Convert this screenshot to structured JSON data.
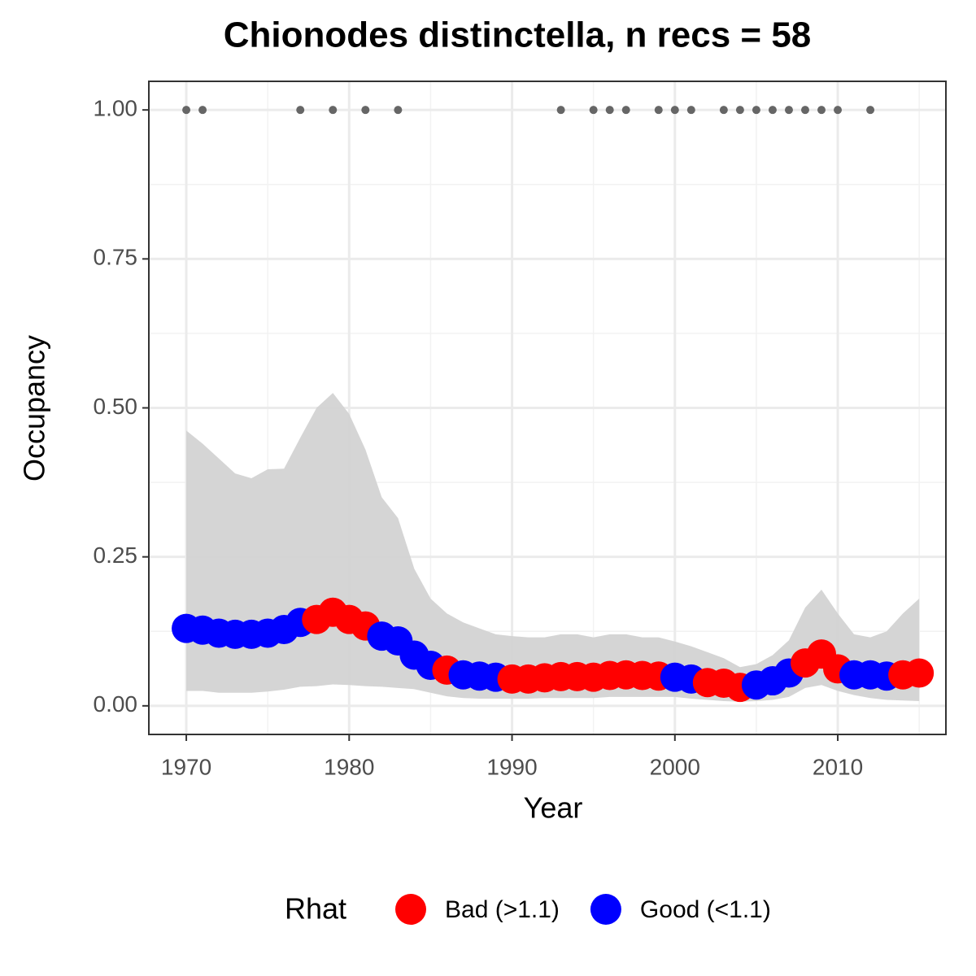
{
  "chart_data": {
    "type": "occupancy",
    "title": "Chionodes distinctella, n recs = 58",
    "x_label": "Year",
    "y_label": "Occupancy",
    "legend_title": "Rhat",
    "x": [
      1970,
      1971,
      1972,
      1973,
      1974,
      1975,
      1976,
      1977,
      1978,
      1979,
      1980,
      1981,
      1982,
      1983,
      1984,
      1985,
      1986,
      1987,
      1988,
      1989,
      1990,
      1991,
      1992,
      1993,
      1994,
      1995,
      1996,
      1997,
      1998,
      1999,
      2000,
      2001,
      2002,
      2003,
      2004,
      2005,
      2006,
      2007,
      2008,
      2009,
      2010,
      2011,
      2012,
      2013,
      2014,
      2015
    ],
    "series": [
      {
        "name": "Bad (>1.1)",
        "color": "#ff0000",
        "values": [
          null,
          null,
          null,
          null,
          null,
          null,
          null,
          null,
          0.145,
          0.157,
          0.145,
          0.134,
          null,
          null,
          null,
          null,
          0.06,
          null,
          null,
          null,
          0.045,
          0.045,
          0.047,
          0.049,
          0.049,
          0.048,
          0.051,
          0.052,
          0.051,
          0.05,
          null,
          null,
          0.039,
          0.038,
          0.031,
          null,
          null,
          null,
          0.072,
          0.087,
          0.062,
          null,
          null,
          null,
          0.052,
          0.055
        ]
      },
      {
        "name": "Good (<1.1)",
        "color": "#0000ff",
        "values": [
          0.13,
          0.127,
          0.122,
          0.12,
          0.12,
          0.122,
          0.128,
          0.14,
          null,
          null,
          null,
          null,
          0.117,
          0.109,
          0.085,
          0.068,
          null,
          0.052,
          0.05,
          0.048,
          null,
          null,
          null,
          null,
          null,
          null,
          null,
          null,
          null,
          null,
          0.048,
          0.045,
          null,
          null,
          null,
          0.035,
          0.042,
          0.055,
          null,
          null,
          null,
          0.052,
          0.052,
          0.05,
          null,
          null
        ]
      }
    ],
    "ribbon": {
      "color": "#d3d3d3",
      "upper": [
        0.462,
        0.44,
        0.415,
        0.39,
        0.382,
        0.397,
        0.398,
        0.45,
        0.5,
        0.525,
        0.49,
        0.43,
        0.35,
        0.315,
        0.23,
        0.18,
        0.155,
        0.14,
        0.13,
        0.12,
        0.117,
        0.115,
        0.115,
        0.12,
        0.12,
        0.115,
        0.12,
        0.12,
        0.115,
        0.115,
        0.108,
        0.1,
        0.09,
        0.08,
        0.065,
        0.07,
        0.085,
        0.11,
        0.165,
        0.195,
        0.155,
        0.12,
        0.115,
        0.125,
        0.155,
        0.18
      ],
      "lower": [
        0.025,
        0.025,
        0.022,
        0.022,
        0.022,
        0.024,
        0.027,
        0.032,
        0.033,
        0.036,
        0.035,
        0.033,
        0.032,
        0.03,
        0.028,
        0.022,
        0.016,
        0.013,
        0.012,
        0.012,
        0.012,
        0.012,
        0.013,
        0.013,
        0.013,
        0.013,
        0.015,
        0.015,
        0.015,
        0.015,
        0.015,
        0.012,
        0.01,
        0.008,
        0.007,
        0.008,
        0.01,
        0.015,
        0.03,
        0.035,
        0.025,
        0.018,
        0.013,
        0.01,
        0.009,
        0.008
      ]
    },
    "detections": {
      "color": "#666666",
      "x": [
        1970,
        1971,
        1977,
        1979,
        1981,
        1983,
        1993,
        1995,
        1996,
        1997,
        1999,
        2000,
        2001,
        2003,
        2004,
        2005,
        2006,
        2007,
        2008,
        2009,
        2010,
        2012
      ],
      "values": [
        1,
        1,
        1,
        1,
        1,
        1,
        1,
        1,
        1,
        1,
        1,
        1,
        1,
        1,
        1,
        1,
        1,
        1,
        1,
        1,
        1,
        1
      ]
    },
    "xlim": [
      1967.7,
      2016.64
    ],
    "ylim": [
      -0.048,
      1.048
    ],
    "xticks": [
      1970,
      1980,
      1990,
      2000,
      2010
    ],
    "yticks": [
      {
        "value": 0,
        "label": "0.00"
      },
      {
        "value": 0.25,
        "label": "0.25"
      },
      {
        "value": 0.5,
        "label": "0.50"
      },
      {
        "value": 0.75,
        "label": "0.75"
      },
      {
        "value": 1,
        "label": "1.00"
      }
    ],
    "grid": true
  }
}
